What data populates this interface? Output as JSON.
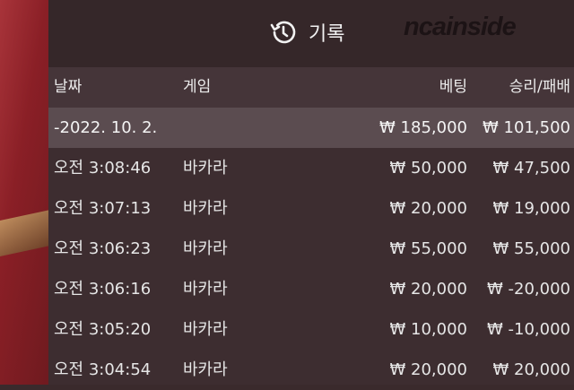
{
  "title": {
    "icon": "history-icon",
    "label": "기록"
  },
  "watermark": "ncainside",
  "columns": {
    "date": "날짜",
    "game": "게임",
    "bet": "베팅",
    "result": "승리/패배"
  },
  "date_group": {
    "date": "-2022. 10. 2.",
    "bet": "₩ 185,000",
    "result": "₩ 101,500"
  },
  "rows": [
    {
      "time": "오전 3:08:46",
      "game": "바카라",
      "bet": "₩ 50,000",
      "result": "₩ 47,500"
    },
    {
      "time": "오전 3:07:13",
      "game": "바카라",
      "bet": "₩ 20,000",
      "result": "₩ 19,000"
    },
    {
      "time": "오전 3:06:23",
      "game": "바카라",
      "bet": "₩ 55,000",
      "result": "₩ 55,000"
    },
    {
      "time": "오전 3:06:16",
      "game": "바카라",
      "bet": "₩ 20,000",
      "result": "₩ -20,000"
    },
    {
      "time": "오전 3:05:20",
      "game": "바카라",
      "bet": "₩ 10,000",
      "result": "₩ -10,000"
    },
    {
      "time": "오전 3:04:54",
      "game": "바카라",
      "bet": "₩ 20,000",
      "result": "₩ 20,000"
    }
  ]
}
